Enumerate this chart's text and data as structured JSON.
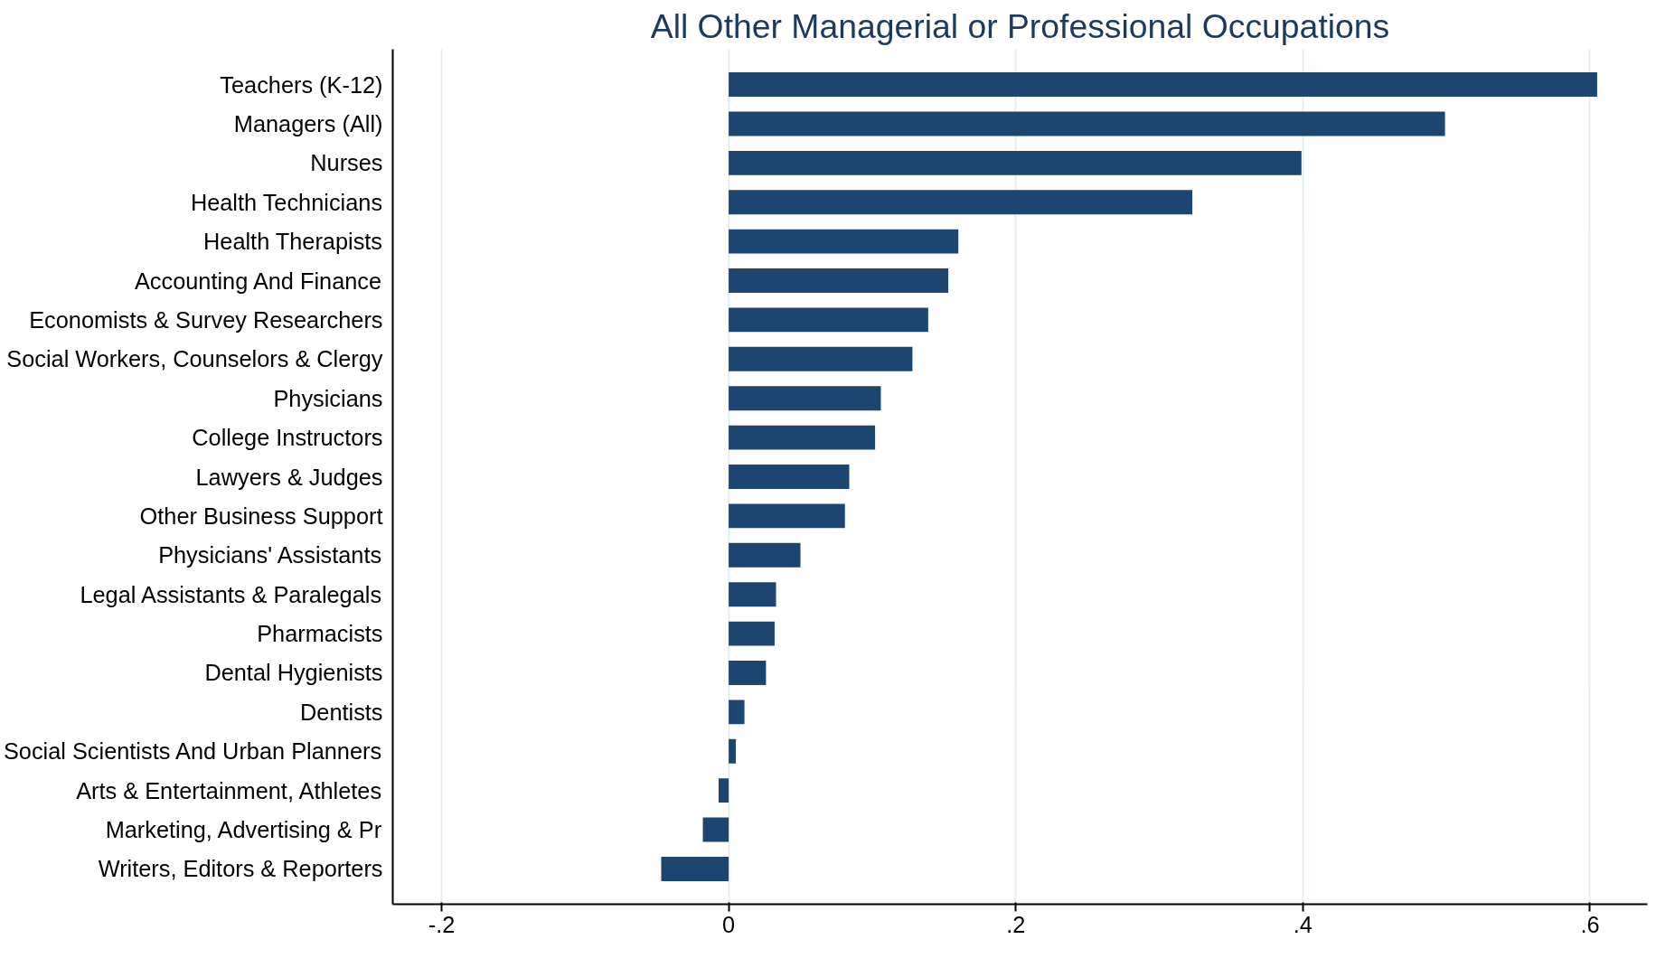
{
  "chart_data": {
    "type": "bar",
    "orientation": "horizontal",
    "title": "All Other Managerial or Professional Occupations",
    "categories": [
      "Teachers (K-12)",
      "Managers (All)",
      "Nurses",
      "Health Technicians",
      "Health Therapists",
      "Accounting And Finance",
      "Economists & Survey Researchers",
      "Social Workers, Counselors & Clergy",
      "Physicians",
      "College Instructors",
      "Lawyers & Judges",
      "Other Business Support",
      "Physicians' Assistants",
      "Legal Assistants & Paralegals",
      "Pharmacists",
      "Dental Hygienists",
      "Dentists",
      "Social Scientists And Urban Planners",
      "Arts & Entertainment, Athletes",
      "Marketing, Advertising & Pr",
      "Writers, Editors & Reporters"
    ],
    "values": [
      0.605,
      0.499,
      0.399,
      0.323,
      0.16,
      0.153,
      0.139,
      0.128,
      0.106,
      0.102,
      0.084,
      0.081,
      0.05,
      0.033,
      0.032,
      0.026,
      0.011,
      0.005,
      -0.007,
      -0.018,
      -0.047
    ],
    "color": "#1c4570",
    "xlim": [
      -0.234,
      0.64
    ],
    "xticks": [
      {
        "value": -0.2,
        "label": "-.2"
      },
      {
        "value": 0,
        "label": "0"
      },
      {
        "value": 0.2,
        "label": ".2"
      },
      {
        "value": 0.4,
        "label": ".4"
      },
      {
        "value": 0.6,
        "label": ".6"
      }
    ],
    "grid": "x"
  }
}
